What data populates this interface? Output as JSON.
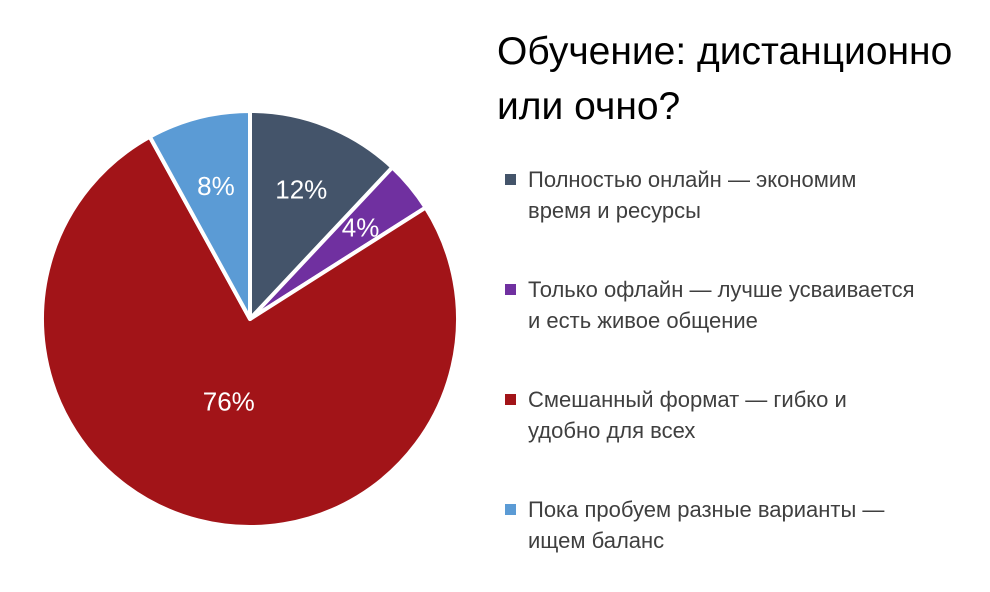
{
  "chart_data": {
    "type": "pie",
    "title": "Обучение: дистанционно или очно?",
    "legend_position": "right",
    "direction": "clockwise",
    "start_angle": "top",
    "slice_border_color": "#FFFFFF",
    "data_label_color": "#FFFFFF",
    "title_color": "#000000",
    "legend_text_color": "#3F3F3F",
    "slices": [
      {
        "label": "Полностью онлайн — экономим время и ресурсы",
        "legend_lines": [
          "Полностью онлайн — экономим",
          "время и ресурсы"
        ],
        "value": 12,
        "display": "12%",
        "color": "#44546A",
        "label_r": 0.67
      },
      {
        "label": "Только офлайн — лучше усваивается и есть живое общение",
        "legend_lines": [
          "Только офлайн — лучше усваивается",
          "и есть живое общение"
        ],
        "value": 4,
        "display": "4%",
        "color": "#7030A0",
        "label_r": 0.69
      },
      {
        "label": "Смешанный формат — гибко и удобно для всех",
        "legend_lines": [
          "Смешанный формат — гибко и",
          "удобно для всех"
        ],
        "value": 76,
        "display": "76%",
        "color": "#A21418",
        "label_r": 0.41
      },
      {
        "label": "Пока пробуем разные варианты — ищем баланс",
        "legend_lines": [
          "Пока пробуем разные варианты —",
          "ищем баланс"
        ],
        "value": 8,
        "display": "8%",
        "color": "#5B9BD5",
        "label_r": 0.66
      }
    ]
  }
}
